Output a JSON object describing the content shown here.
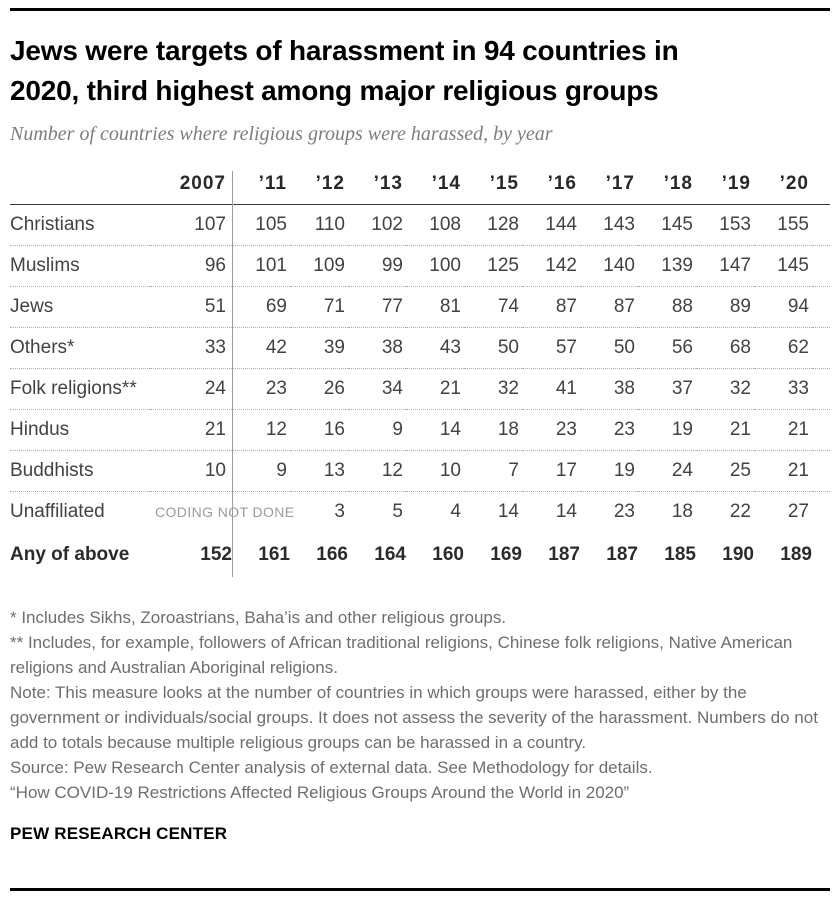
{
  "header": {
    "title_line1": "Jews were targets of harassment in 94 countries in",
    "title_line2": "2020, third highest among major religious groups",
    "subtitle": "Number of countries where religious groups were harassed, by year"
  },
  "chart_data": {
    "type": "table",
    "title": "Jews were targets of harassment in 94 countries in 2020, third highest among major religious groups",
    "subtitle": "Number of countries where religious groups were harassed, by year",
    "columns": [
      "2007",
      "’11",
      "’12",
      "’13",
      "’14",
      "’15",
      "’16",
      "’17",
      "’18",
      "’19",
      "’20"
    ],
    "rows": [
      {
        "group": "Christians",
        "values": [
          107,
          105,
          110,
          102,
          108,
          128,
          144,
          143,
          145,
          153,
          155
        ]
      },
      {
        "group": "Muslims",
        "values": [
          96,
          101,
          109,
          99,
          100,
          125,
          142,
          140,
          139,
          147,
          145
        ]
      },
      {
        "group": "Jews",
        "values": [
          51,
          69,
          71,
          77,
          81,
          74,
          87,
          87,
          88,
          89,
          94
        ]
      },
      {
        "group": "Others*",
        "values": [
          33,
          42,
          39,
          38,
          43,
          50,
          57,
          50,
          56,
          68,
          62
        ]
      },
      {
        "group": "Folk religions**",
        "values": [
          24,
          23,
          26,
          34,
          21,
          32,
          41,
          38,
          37,
          32,
          33
        ]
      },
      {
        "group": "Hindus",
        "values": [
          21,
          12,
          16,
          9,
          14,
          18,
          23,
          23,
          19,
          21,
          21
        ]
      },
      {
        "group": "Buddhists",
        "values": [
          10,
          9,
          13,
          12,
          10,
          7,
          17,
          19,
          24,
          25,
          21
        ]
      },
      {
        "group": "Unaffiliated",
        "note": "CODING NOT DONE",
        "values": [
          null,
          null,
          3,
          5,
          4,
          14,
          14,
          23,
          18,
          22,
          27
        ]
      },
      {
        "group": "Any of above",
        "bold": true,
        "values": [
          152,
          161,
          166,
          164,
          160,
          169,
          187,
          187,
          185,
          190,
          189
        ]
      }
    ]
  },
  "notes": {
    "asterisk": "* Includes Sikhs, Zoroastrians, Baha’is and other religious groups.",
    "double_asterisk": "** Includes, for example, followers of African traditional religions, Chinese folk religions, Native American religions and Australian Aboriginal religions.",
    "note": "Note: This measure looks at the number of countries in which groups were harassed, either by the government or individuals/social groups. It does not assess the severity of the harassment. Numbers do not add to totals because multiple religious groups can be harassed in a country.",
    "source": "Source: Pew Research Center analysis of external data. See Methodology for details.",
    "report": "“How COVID-19 Restrictions Affected Religious Groups Around the World in 2020”"
  },
  "footer": {
    "brand": "PEW RESEARCH CENTER"
  },
  "colors": {
    "rule": "#000000",
    "header_text": "#282828",
    "body_text": "#424242",
    "coding_note": "#9b9b9b",
    "notes_text": "#6e6e6e",
    "divider": "#9c9c9c",
    "dotted_separator": "#adadad",
    "subtitle_text": "#7f7d7d"
  }
}
